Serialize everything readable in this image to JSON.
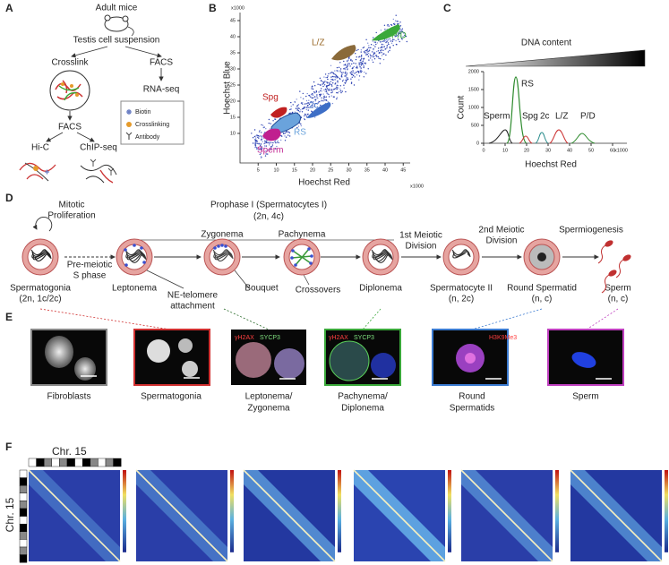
{
  "panel_a": {
    "label": "A",
    "adult_mice": "Adult mice",
    "suspension": "Testis cell suspension",
    "crosslink": "Crosslink",
    "facs_right": "FACS",
    "rna_seq": "RNA-seq",
    "facs_left": "FACS",
    "hic": "Hi-C",
    "chip_seq": "ChIP-seq",
    "legend": [
      "Biotin",
      "Crosslinking",
      "Antibody"
    ]
  },
  "panel_b": {
    "label": "B",
    "y_label": "Hoechst Blue",
    "x_label": "Hoechst Red",
    "y_unit": "x1000",
    "x_unit": "x1000",
    "xticks": [
      5,
      10,
      15,
      20,
      25,
      30,
      35,
      40,
      45
    ],
    "yticks": [
      10,
      15,
      20,
      25,
      30,
      35,
      40,
      45
    ],
    "populations": [
      "L/Z",
      "P/D",
      "Spg",
      "2c",
      "RS",
      "Sperm"
    ]
  },
  "panel_c": {
    "label": "C",
    "gradient_label": "DNA content",
    "y_label": "Count",
    "x_label": "Hoechst Red",
    "x_unit": "x1000",
    "yticks": [
      0,
      500,
      1000,
      1500,
      2000
    ],
    "xticks": [
      0,
      10,
      20,
      30,
      40,
      50,
      60
    ],
    "peaks": [
      "RS",
      "Sperm",
      "Spg",
      "2c",
      "L/Z",
      "P/D"
    ]
  },
  "panel_d": {
    "label": "D",
    "mitotic": [
      "Mitotic",
      "Proliferation"
    ],
    "prophase": [
      "Prophase I (Spermatocytes I)",
      "(2n, 4c)"
    ],
    "premeiotic": [
      "Pre-meiotic",
      "S phase"
    ],
    "spermatogonia": [
      "Spermatogonia",
      "(2n, 1c/2c)"
    ],
    "leptonema": "Leptonema",
    "zygonema": "Zygonema",
    "pachynema": "Pachynema",
    "diplonema": "Diplonema",
    "ne_telomere": [
      "NE-telomere",
      "attachment"
    ],
    "bouquet": "Bouquet",
    "crossovers": "Crossovers",
    "first_division": [
      "1st Meiotic",
      "Division"
    ],
    "spermatocyte2": [
      "Spermatocyte II",
      "(n, 2c)"
    ],
    "second_division": [
      "2nd Meiotic",
      "Division"
    ],
    "round_spermatid": [
      "Round Spermatid",
      "(n, c)"
    ],
    "spermiogenesis": "Spermiogenesis",
    "sperm": [
      "Sperm",
      "(n, c)"
    ]
  },
  "panel_e": {
    "label": "E",
    "stains": [
      "γH2AX",
      "SYCP3",
      "γH2AX",
      "SYCP3",
      "H3K9Me3"
    ],
    "captions": [
      [
        "Fibroblasts"
      ],
      [
        "Spermatogonia"
      ],
      [
        "Leptonema/",
        "Zygonema"
      ],
      [
        "Pachynema/",
        "Diplonema"
      ],
      [
        "Round",
        "Spermatids"
      ],
      [
        "Sperm"
      ]
    ]
  },
  "panel_f": {
    "label": "F",
    "top_label": "Chr. 15",
    "side_label": "Chr. 15"
  }
}
